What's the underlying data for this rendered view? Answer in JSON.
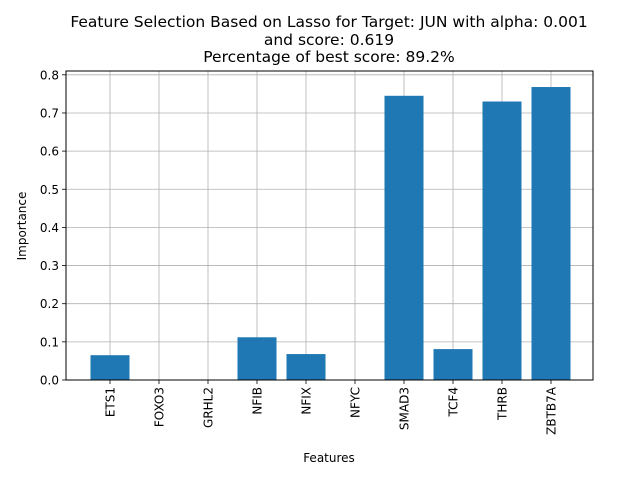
{
  "chart_data": {
    "type": "bar",
    "title": [
      "Feature Selection Based on Lasso for Target: JUN with alpha: 0.001",
      "and score: 0.619",
      "Percentage of best score: 89.2%"
    ],
    "xlabel": "Features",
    "ylabel": "Importance",
    "categories": [
      "ETS1",
      "FOXO3",
      "GRHL2",
      "NFIB",
      "NFIX",
      "NFYC",
      "SMAD3",
      "TCF4",
      "THRB",
      "ZBTB7A"
    ],
    "values": [
      0.065,
      0.0,
      0.0,
      0.112,
      0.068,
      0.0,
      0.745,
      0.081,
      0.73,
      0.768
    ],
    "ylim": [
      0,
      0.81
    ],
    "yticks": [
      "0.0",
      "0.1",
      "0.2",
      "0.3",
      "0.4",
      "0.5",
      "0.6",
      "0.7",
      "0.8"
    ],
    "grid": true,
    "legend": "none",
    "colors": {
      "bar": "#1f77b4",
      "grid": "#b0b0b0",
      "axis": "#000000"
    }
  }
}
